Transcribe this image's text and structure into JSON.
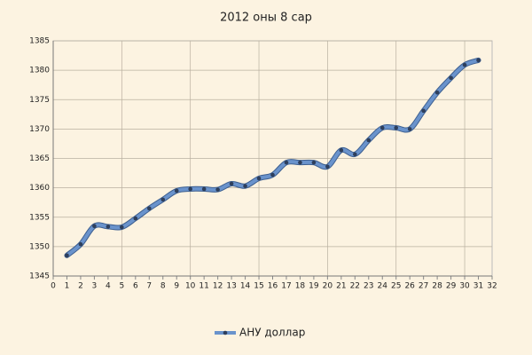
{
  "chart_data": {
    "type": "line",
    "title": "2012 оны 8 сар",
    "x": [
      1,
      2,
      3,
      4,
      5,
      6,
      7,
      8,
      9,
      10,
      11,
      12,
      13,
      14,
      15,
      16,
      17,
      18,
      19,
      20,
      21,
      22,
      23,
      24,
      25,
      26,
      27,
      28,
      29,
      30,
      31
    ],
    "series": [
      {
        "name": "АНУ доллар",
        "color": "#6a93cc",
        "values": [
          1348.5,
          1350.4,
          1353.5,
          1353.4,
          1353.3,
          1354.8,
          1356.5,
          1358.0,
          1359.5,
          1359.8,
          1359.8,
          1359.7,
          1360.7,
          1360.3,
          1361.6,
          1362.2,
          1364.3,
          1364.3,
          1364.3,
          1363.6,
          1366.4,
          1365.7,
          1368.1,
          1370.2,
          1370.2,
          1370.0,
          1373.1,
          1376.2,
          1378.7,
          1380.9,
          1381.7
        ]
      }
    ],
    "xlim": [
      0,
      32
    ],
    "xticks": [
      0,
      1,
      2,
      3,
      4,
      5,
      6,
      7,
      8,
      9,
      10,
      11,
      12,
      13,
      14,
      15,
      16,
      17,
      18,
      19,
      20,
      21,
      22,
      23,
      24,
      25,
      26,
      27,
      28,
      29,
      30,
      31,
      32
    ],
    "ylim": [
      1345,
      1385
    ],
    "yticks": [
      1345,
      1350,
      1355,
      1360,
      1365,
      1370,
      1375,
      1380,
      1385
    ],
    "grid": true,
    "legend": "bottom"
  }
}
